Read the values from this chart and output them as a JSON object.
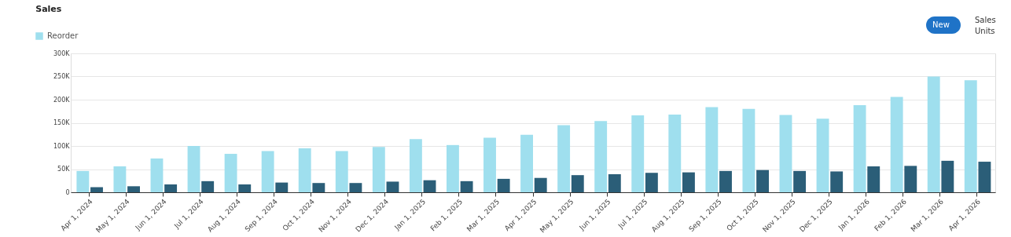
{
  "chart_data": {
    "type": "bar",
    "title": "Sales",
    "categories": [
      "Apr 1, 2024",
      "May 1, 2024",
      "Jun 1, 2024",
      "Jul 1, 2024",
      "Aug 1, 2024",
      "Sep 1, 2024",
      "Oct 1, 2024",
      "Nov 1, 2024",
      "Dec 1, 2024",
      "Jan 1, 2025",
      "Feb 1, 2025",
      "Mar 1, 2025",
      "Apr 1, 2025",
      "May 1, 2025",
      "Jun 1, 2025",
      "Jul 1, 2025",
      "Aug 1, 2025",
      "Sep 1, 2025",
      "Oct 1, 2025",
      "Nov 1, 2025",
      "Dec 1, 2025",
      "Jan 1, 2026",
      "Feb 1, 2026",
      "Mar 1, 2026",
      "Apr 1, 2026"
    ],
    "series": [
      {
        "name": "Reorder",
        "color": "#9fdfee",
        "values": [
          46000,
          56000,
          73000,
          100000,
          83000,
          89000,
          95000,
          89000,
          98000,
          115000,
          102000,
          118000,
          124000,
          145000,
          154000,
          166000,
          168000,
          184000,
          180000,
          167000,
          159000,
          188000,
          206000,
          250000,
          242000
        ]
      },
      {
        "color": "#2b5e78",
        "values": [
          11000,
          13000,
          17000,
          24000,
          17000,
          21000,
          20000,
          20000,
          23000,
          26000,
          24000,
          29000,
          31000,
          37000,
          39000,
          42000,
          43000,
          46000,
          48000,
          46000,
          45000,
          56000,
          57000,
          68000,
          66000
        ]
      }
    ],
    "ylim": [
      0,
      300000
    ],
    "yticks": [
      0,
      {
        "value": 50000,
        "label": "50K"
      },
      {
        "value": 100000,
        "label": "100K"
      },
      {
        "value": 150000,
        "label": "150K"
      },
      {
        "value": 200000,
        "label": "200K"
      },
      {
        "value": 250000,
        "label": "250K"
      },
      {
        "value": 300000,
        "label": "300K"
      }
    ],
    "grid": "y",
    "legend": "top left",
    "annotations": [
      "New",
      "Sales",
      "Units"
    ]
  }
}
